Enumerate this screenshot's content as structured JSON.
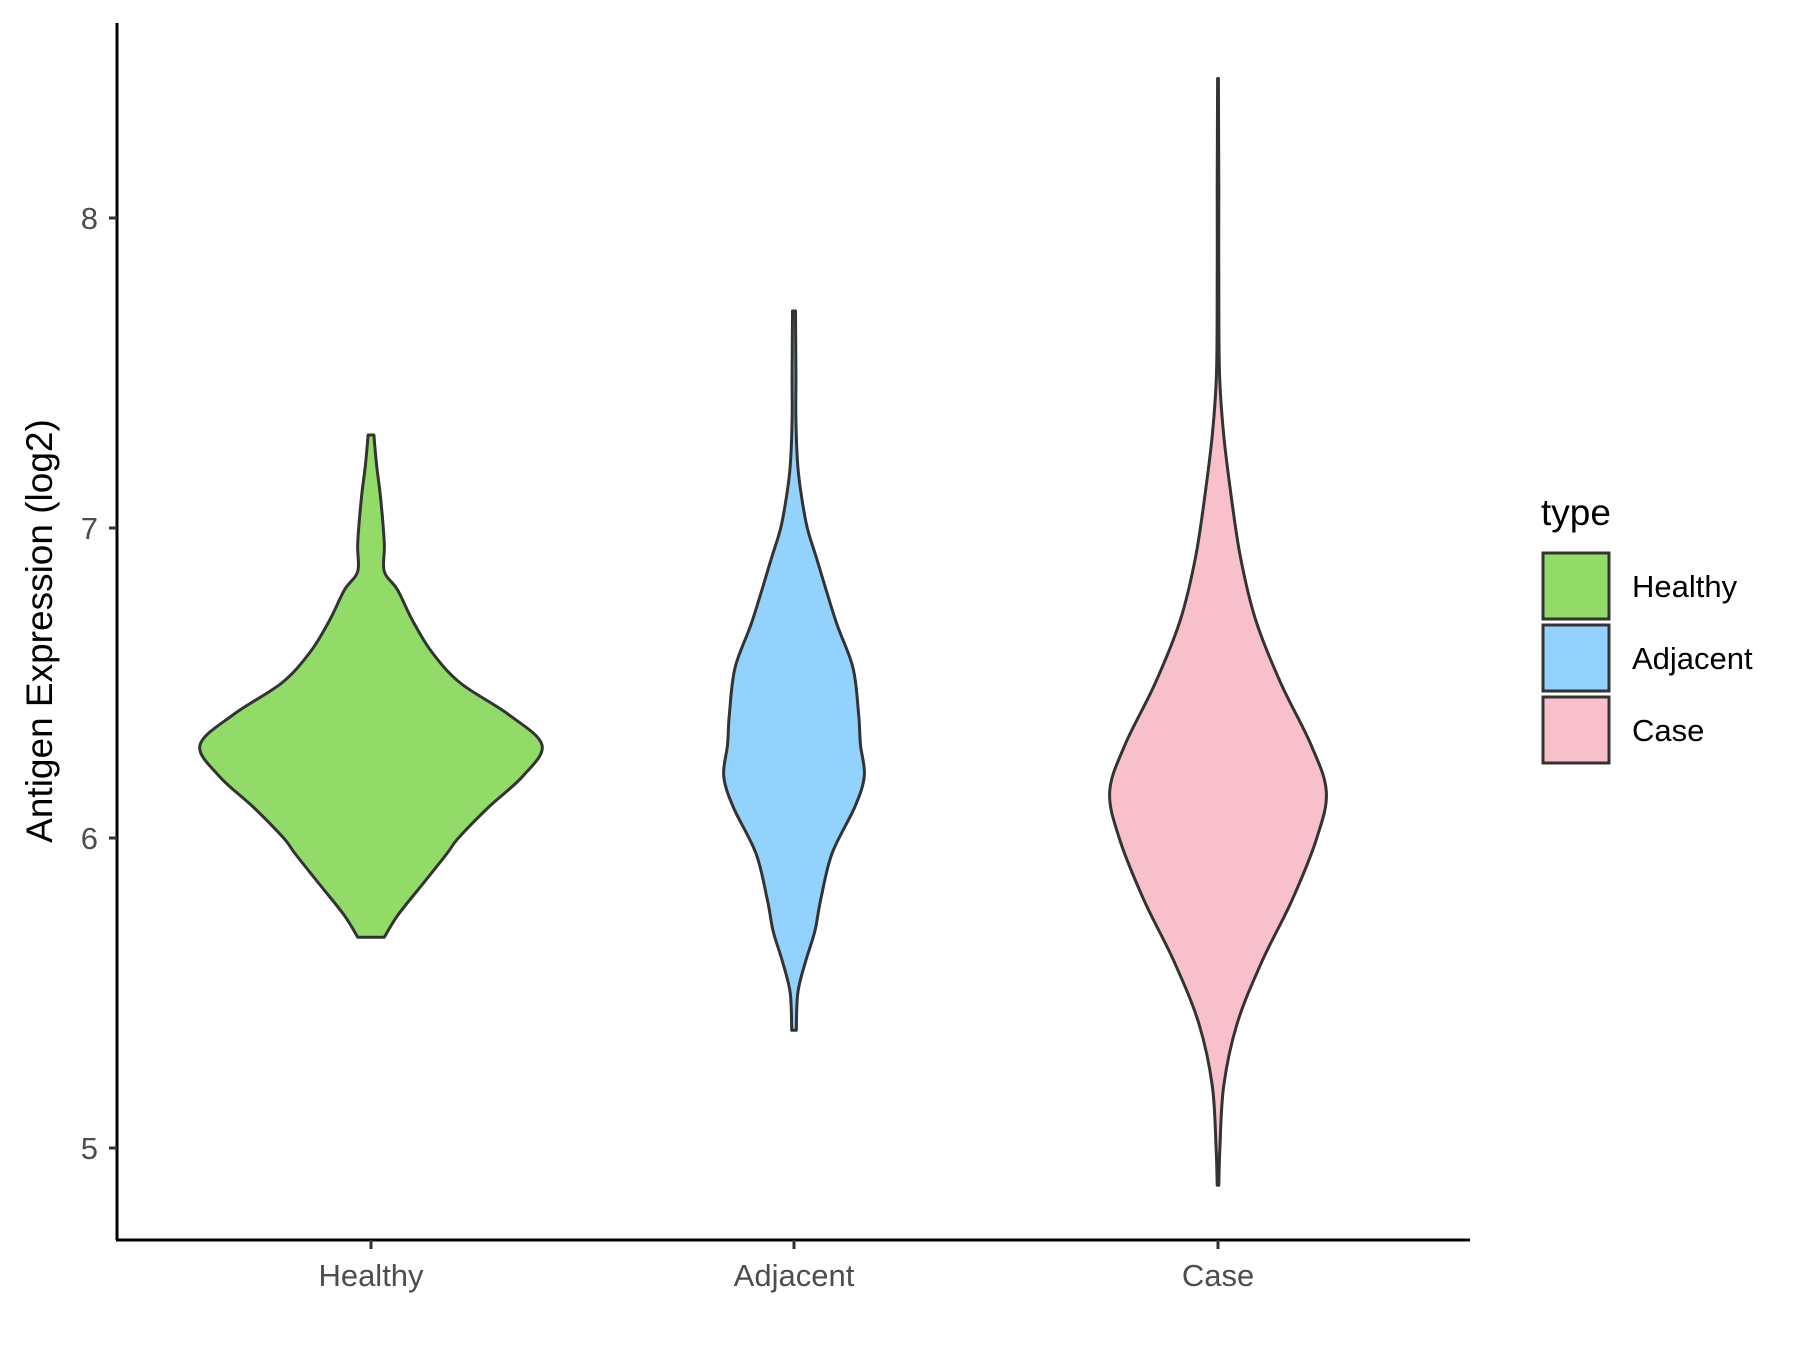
{
  "chart_data": {
    "type": "violin",
    "title": "",
    "xlabel": "",
    "ylabel": "Antigen Expression (log2)",
    "categories": [
      "Healthy",
      "Adjacent",
      "Case"
    ],
    "y_ticks": [
      5,
      6,
      7,
      8
    ],
    "ylim": [
      4.7,
      8.63
    ],
    "grid": false,
    "legend": {
      "title": "type",
      "position": "right",
      "entries": [
        {
          "label": "Healthy",
          "color": "#93DB69"
        },
        {
          "label": "Adjacent",
          "color": "#92D2FD"
        },
        {
          "label": "Case",
          "color": "#F8C0CB"
        }
      ]
    },
    "series": [
      {
        "category": "Healthy",
        "color": "#93DB69",
        "density": [
          [
            5.68,
            0.07
          ],
          [
            5.75,
            0.14
          ],
          [
            5.85,
            0.27
          ],
          [
            5.95,
            0.4
          ],
          [
            6.0,
            0.46
          ],
          [
            6.1,
            0.62
          ],
          [
            6.2,
            0.8
          ],
          [
            6.3,
            0.9
          ],
          [
            6.4,
            0.72
          ],
          [
            6.5,
            0.47
          ],
          [
            6.6,
            0.32
          ],
          [
            6.7,
            0.22
          ],
          [
            6.8,
            0.14
          ],
          [
            6.86,
            0.07
          ],
          [
            6.95,
            0.07
          ],
          [
            7.1,
            0.05
          ],
          [
            7.2,
            0.03
          ],
          [
            7.3,
            0.015
          ]
        ]
      },
      {
        "category": "Adjacent",
        "color": "#92D2FD",
        "density": [
          [
            5.38,
            0.012
          ],
          [
            5.5,
            0.02
          ],
          [
            5.6,
            0.06
          ],
          [
            5.7,
            0.11
          ],
          [
            5.8,
            0.14
          ],
          [
            5.95,
            0.2
          ],
          [
            6.1,
            0.32
          ],
          [
            6.2,
            0.37
          ],
          [
            6.3,
            0.35
          ],
          [
            6.4,
            0.34
          ],
          [
            6.55,
            0.31
          ],
          [
            6.7,
            0.22
          ],
          [
            6.9,
            0.12
          ],
          [
            7.0,
            0.07
          ],
          [
            7.1,
            0.04
          ],
          [
            7.2,
            0.02
          ],
          [
            7.35,
            0.01
          ],
          [
            7.5,
            0.01
          ],
          [
            7.7,
            0.008
          ]
        ]
      },
      {
        "category": "Case",
        "color": "#F8C0CB",
        "density": [
          [
            4.88,
            0.004
          ],
          [
            5.0,
            0.01
          ],
          [
            5.2,
            0.03
          ],
          [
            5.4,
            0.1
          ],
          [
            5.6,
            0.23
          ],
          [
            5.8,
            0.39
          ],
          [
            6.0,
            0.52
          ],
          [
            6.15,
            0.57
          ],
          [
            6.3,
            0.49
          ],
          [
            6.5,
            0.33
          ],
          [
            6.7,
            0.2
          ],
          [
            6.9,
            0.12
          ],
          [
            7.1,
            0.07
          ],
          [
            7.3,
            0.03
          ],
          [
            7.5,
            0.008
          ],
          [
            7.8,
            0.004
          ],
          [
            8.1,
            0.004
          ],
          [
            8.45,
            0.002
          ]
        ]
      }
    ]
  }
}
